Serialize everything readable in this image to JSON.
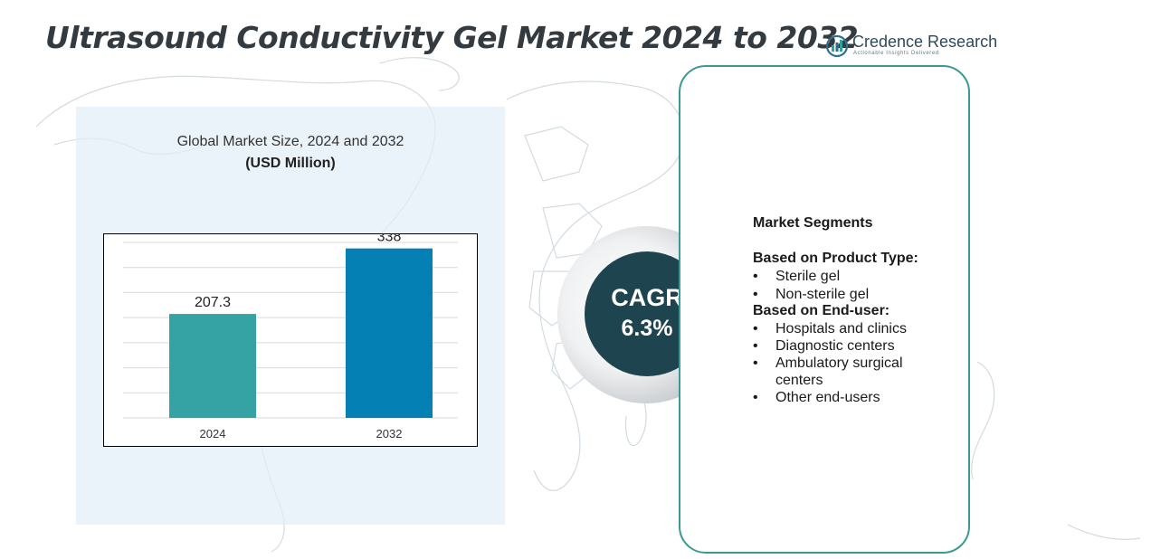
{
  "header": {
    "title": "Ultrasound Conductivity Gel Market 2024 to 2032",
    "brand_name": "Credence Research",
    "brand_tagline": "Actionable Insights Delivered"
  },
  "chart_data": {
    "type": "bar",
    "title": "Global Market Size, 2024 and 2032",
    "subtitle": "(USD Million)",
    "categories": [
      "2024",
      "2032"
    ],
    "values": [
      207.3,
      338
    ],
    "value_labels": [
      "207.3",
      "338"
    ],
    "colors": [
      "#35a3a3",
      "#0580b4"
    ],
    "ylim": [
      0,
      350
    ],
    "grid": true,
    "legend": "none"
  },
  "cagr": {
    "label": "CAGR",
    "value": "6.3%"
  },
  "segments": {
    "title": "Market Segments",
    "groups": [
      {
        "heading": "Based on Product Type:",
        "items": [
          "Sterile gel",
          "Non-sterile gel"
        ]
      },
      {
        "heading": "Based on End-user:",
        "items": [
          "Hospitals and clinics",
          "Diagnostic centers",
          "Ambulatory surgical centers",
          "Other end-users"
        ]
      }
    ]
  },
  "colors": {
    "panel": "#e1eef6",
    "cagr_circle": "#1e4450",
    "segment_border": "#3a9a93"
  }
}
